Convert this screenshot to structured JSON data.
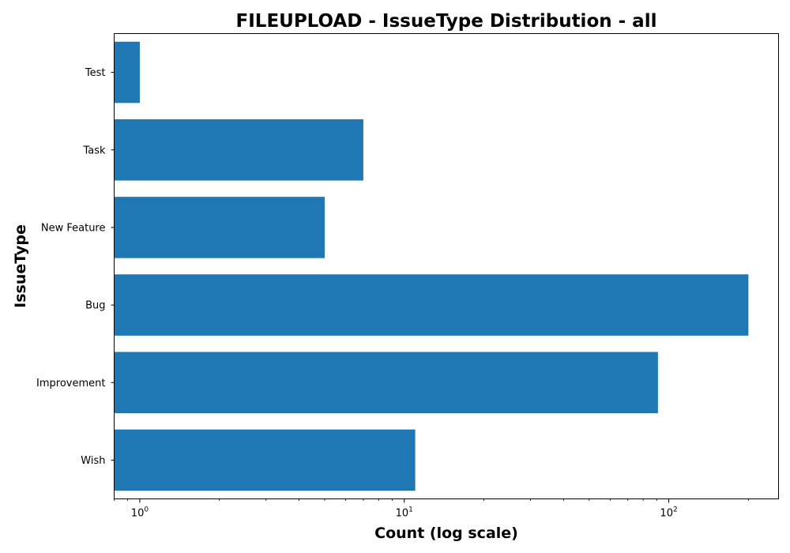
{
  "chart_data": {
    "type": "bar",
    "orientation": "horizontal",
    "title": "FILEUPLOAD - IssueType Distribution - all",
    "xlabel": "Count (log scale)",
    "ylabel": "IssueType",
    "x_scale": "log",
    "xlim": [
      0.8,
      260
    ],
    "x_major_ticks": [
      {
        "value": 1,
        "base": "10",
        "exponent": "0"
      },
      {
        "value": 10,
        "base": "10",
        "exponent": "1"
      },
      {
        "value": 100,
        "base": "10",
        "exponent": "2"
      }
    ],
    "categories": [
      "Wish",
      "Improvement",
      "Bug",
      "New Feature",
      "Task",
      "Test"
    ],
    "values": [
      11,
      91,
      200,
      5,
      7,
      1
    ],
    "bar_color": "#1f77b4",
    "grid": false,
    "legend": "none"
  }
}
